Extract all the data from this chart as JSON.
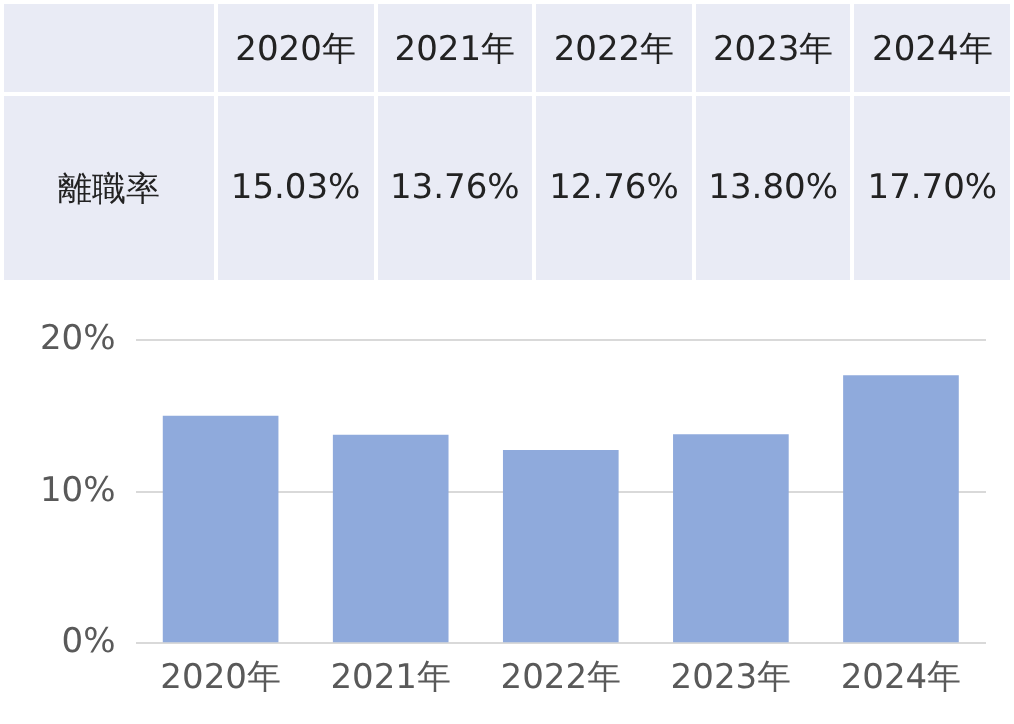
{
  "chart_data": {
    "type": "bar",
    "categories": [
      "2020年",
      "2021年",
      "2022年",
      "2023年",
      "2024年"
    ],
    "series": [
      {
        "name": "離職率",
        "color": "#8faadc",
        "values": [
          15.03,
          13.76,
          12.76,
          13.8,
          17.7
        ],
        "value_labels": [
          "15.03%",
          "13.76%",
          "12.76%",
          "13.80%",
          "17.70%"
        ]
      }
    ],
    "ylim": [
      0,
      20
    ],
    "yticks": [
      {
        "value": 0,
        "label": "0%"
      },
      {
        "value": 10,
        "label": "10%"
      },
      {
        "value": 20,
        "label": "20%"
      }
    ],
    "grid": "y",
    "legend": false
  }
}
